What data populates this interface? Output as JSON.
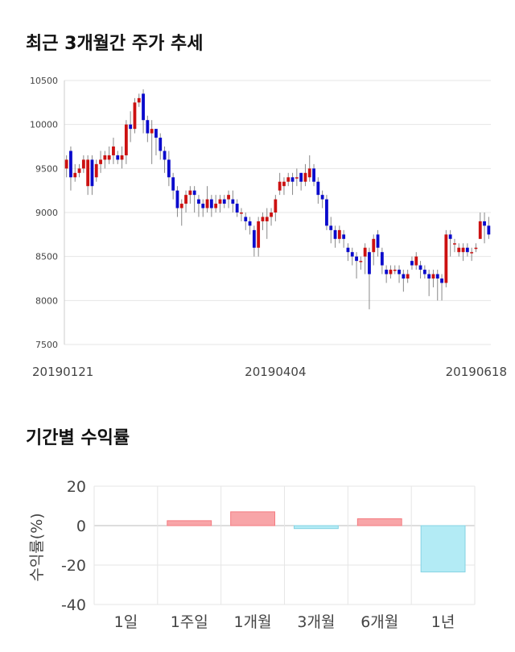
{
  "titles": {
    "candle": "최근 3개월간 주가 추세",
    "returns": "기간별 수익률"
  },
  "colors": {
    "up": "#cc1111",
    "down": "#0a0acc",
    "wick": "#888888",
    "pos_fill": "#f8a5a8",
    "pos_stroke": "#f47b80",
    "neg_fill": "#b3ebf5",
    "neg_stroke": "#86d3e3",
    "grid": "#e6e6e6"
  },
  "chart_data": [
    {
      "type": "candlestick",
      "ylim": [
        7500,
        10500
      ],
      "yticks": [
        "10500",
        "10000",
        "9500",
        "9000",
        "8500",
        "8000",
        "7500"
      ],
      "xtick_labels": [
        "20190121",
        "20190404",
        "20190618"
      ],
      "xtick_index": [
        0,
        49,
        98
      ],
      "grid": "horizontal",
      "candles": [
        [
          9500,
          9600,
          9650,
          9400
        ],
        [
          9700,
          9400,
          9750,
          9250
        ],
        [
          9400,
          9450,
          9550,
          9350
        ],
        [
          9450,
          9500,
          9550,
          9400
        ],
        [
          9500,
          9600,
          9650,
          9450
        ],
        [
          9300,
          9600,
          9650,
          9200
        ],
        [
          9600,
          9300,
          9650,
          9200
        ],
        [
          9400,
          9550,
          9600,
          9350
        ],
        [
          9550,
          9600,
          9700,
          9450
        ],
        [
          9600,
          9650,
          9700,
          9500
        ],
        [
          9600,
          9650,
          9750,
          9550
        ],
        [
          9650,
          9750,
          9850,
          9550
        ],
        [
          9650,
          9600,
          9700,
          9550
        ],
        [
          9600,
          9650,
          9750,
          9500
        ],
        [
          9650,
          10000,
          10050,
          9550
        ],
        [
          10000,
          9950,
          10150,
          9800
        ],
        [
          9950,
          10250,
          10300,
          9900
        ],
        [
          10250,
          10300,
          10350,
          10200
        ],
        [
          10350,
          10050,
          10400,
          9900
        ],
        [
          10050,
          9900,
          10100,
          9800
        ],
        [
          9900,
          9950,
          10050,
          9550
        ],
        [
          9950,
          9850,
          9950,
          9650
        ],
        [
          9850,
          9700,
          9900,
          9600
        ],
        [
          9700,
          9600,
          9750,
          9450
        ],
        [
          9600,
          9400,
          9700,
          9300
        ],
        [
          9400,
          9250,
          9450,
          9150
        ],
        [
          9250,
          9050,
          9300,
          8950
        ],
        [
          9050,
          9100,
          9150,
          8850
        ],
        [
          9100,
          9200,
          9250,
          9000
        ],
        [
          9200,
          9250,
          9300,
          9100
        ],
        [
          9250,
          9200,
          9300,
          9000
        ],
        [
          9150,
          9100,
          9200,
          8950
        ],
        [
          9100,
          9050,
          9150,
          8950
        ],
        [
          9050,
          9150,
          9300,
          9000
        ],
        [
          9150,
          9050,
          9200,
          8950
        ],
        [
          9050,
          9100,
          9200,
          9000
        ],
        [
          9100,
          9150,
          9200,
          9000
        ],
        [
          9150,
          9100,
          9200,
          9050
        ],
        [
          9150,
          9200,
          9250,
          9050
        ],
        [
          9150,
          9100,
          9250,
          9000
        ],
        [
          9100,
          9000,
          9150,
          8950
        ],
        [
          9000,
          9000,
          9050,
          8900
        ],
        [
          8950,
          8900,
          9000,
          8800
        ],
        [
          8900,
          8850,
          8950,
          8750
        ],
        [
          8800,
          8600,
          8850,
          8500
        ],
        [
          8600,
          8900,
          8950,
          8500
        ],
        [
          8900,
          8950,
          9000,
          8800
        ],
        [
          8900,
          8950,
          9050,
          8700
        ],
        [
          8950,
          9000,
          9050,
          8850
        ],
        [
          9000,
          9150,
          9200,
          8900
        ],
        [
          9250,
          9350,
          9450,
          9200
        ],
        [
          9300,
          9350,
          9400,
          9200
        ],
        [
          9350,
          9400,
          9450,
          9300
        ],
        [
          9400,
          9350,
          9450,
          9200
        ],
        [
          9400,
          9400,
          9500,
          9300
        ],
        [
          9450,
          9350,
          9450,
          9250
        ],
        [
          9350,
          9450,
          9550,
          9300
        ],
        [
          9400,
          9500,
          9650,
          9350
        ],
        [
          9500,
          9350,
          9550,
          9300
        ],
        [
          9350,
          9200,
          9400,
          9100
        ],
        [
          9200,
          9150,
          9250,
          9050
        ],
        [
          9150,
          8850,
          9200,
          8800
        ],
        [
          8850,
          8800,
          8950,
          8650
        ],
        [
          8800,
          8700,
          8850,
          8600
        ],
        [
          8700,
          8800,
          8850,
          8650
        ],
        [
          8750,
          8700,
          8800,
          8600
        ],
        [
          8600,
          8550,
          8650,
          8450
        ],
        [
          8550,
          8500,
          8600,
          8400
        ],
        [
          8500,
          8450,
          8550,
          8250
        ],
        [
          8450,
          8450,
          8500,
          8350
        ],
        [
          8500,
          8600,
          8650,
          8300
        ],
        [
          8550,
          8300,
          8600,
          7900
        ],
        [
          8550,
          8700,
          8750,
          8400
        ],
        [
          8750,
          8600,
          8800,
          8500
        ],
        [
          8550,
          8400,
          8600,
          8300
        ],
        [
          8350,
          8300,
          8400,
          8200
        ],
        [
          8300,
          8350,
          8400,
          8250
        ],
        [
          8350,
          8350,
          8400,
          8300
        ],
        [
          8350,
          8300,
          8400,
          8200
        ],
        [
          8300,
          8250,
          8350,
          8100
        ],
        [
          8250,
          8300,
          8350,
          8200
        ],
        [
          8450,
          8400,
          8500,
          8350
        ],
        [
          8400,
          8500,
          8550,
          8350
        ],
        [
          8400,
          8350,
          8450,
          8250
        ],
        [
          8350,
          8300,
          8400,
          8250
        ],
        [
          8300,
          8250,
          8350,
          8050
        ],
        [
          8250,
          8300,
          8350,
          8150
        ],
        [
          8300,
          8250,
          8350,
          8000
        ],
        [
          8250,
          8200,
          8300,
          8000
        ],
        [
          8200,
          8750,
          8800,
          8150
        ],
        [
          8750,
          8700,
          8800,
          8500
        ],
        [
          8650,
          8650,
          8700,
          8550
        ],
        [
          8550,
          8600,
          8650,
          8500
        ],
        [
          8550,
          8600,
          8650,
          8450
        ],
        [
          8600,
          8550,
          8650,
          8500
        ],
        [
          8550,
          8550,
          8600,
          8450
        ],
        [
          8600,
          8600,
          8650,
          8550
        ],
        [
          8700,
          8900,
          9000,
          8700
        ],
        [
          8900,
          8850,
          9000,
          8650
        ],
        [
          8850,
          8750,
          8950,
          8700
        ]
      ]
    },
    {
      "type": "bar",
      "categories": [
        "1일",
        "1주일",
        "1개월",
        "3개월",
        "6개월",
        "1년"
      ],
      "values": [
        0,
        2.5,
        7,
        -1.5,
        3.5,
        -23.5
      ],
      "ylabel": "수익률(%)",
      "ylim": [
        -40,
        20
      ],
      "yticks": [
        "20",
        "0",
        "-20",
        "-40"
      ]
    }
  ]
}
